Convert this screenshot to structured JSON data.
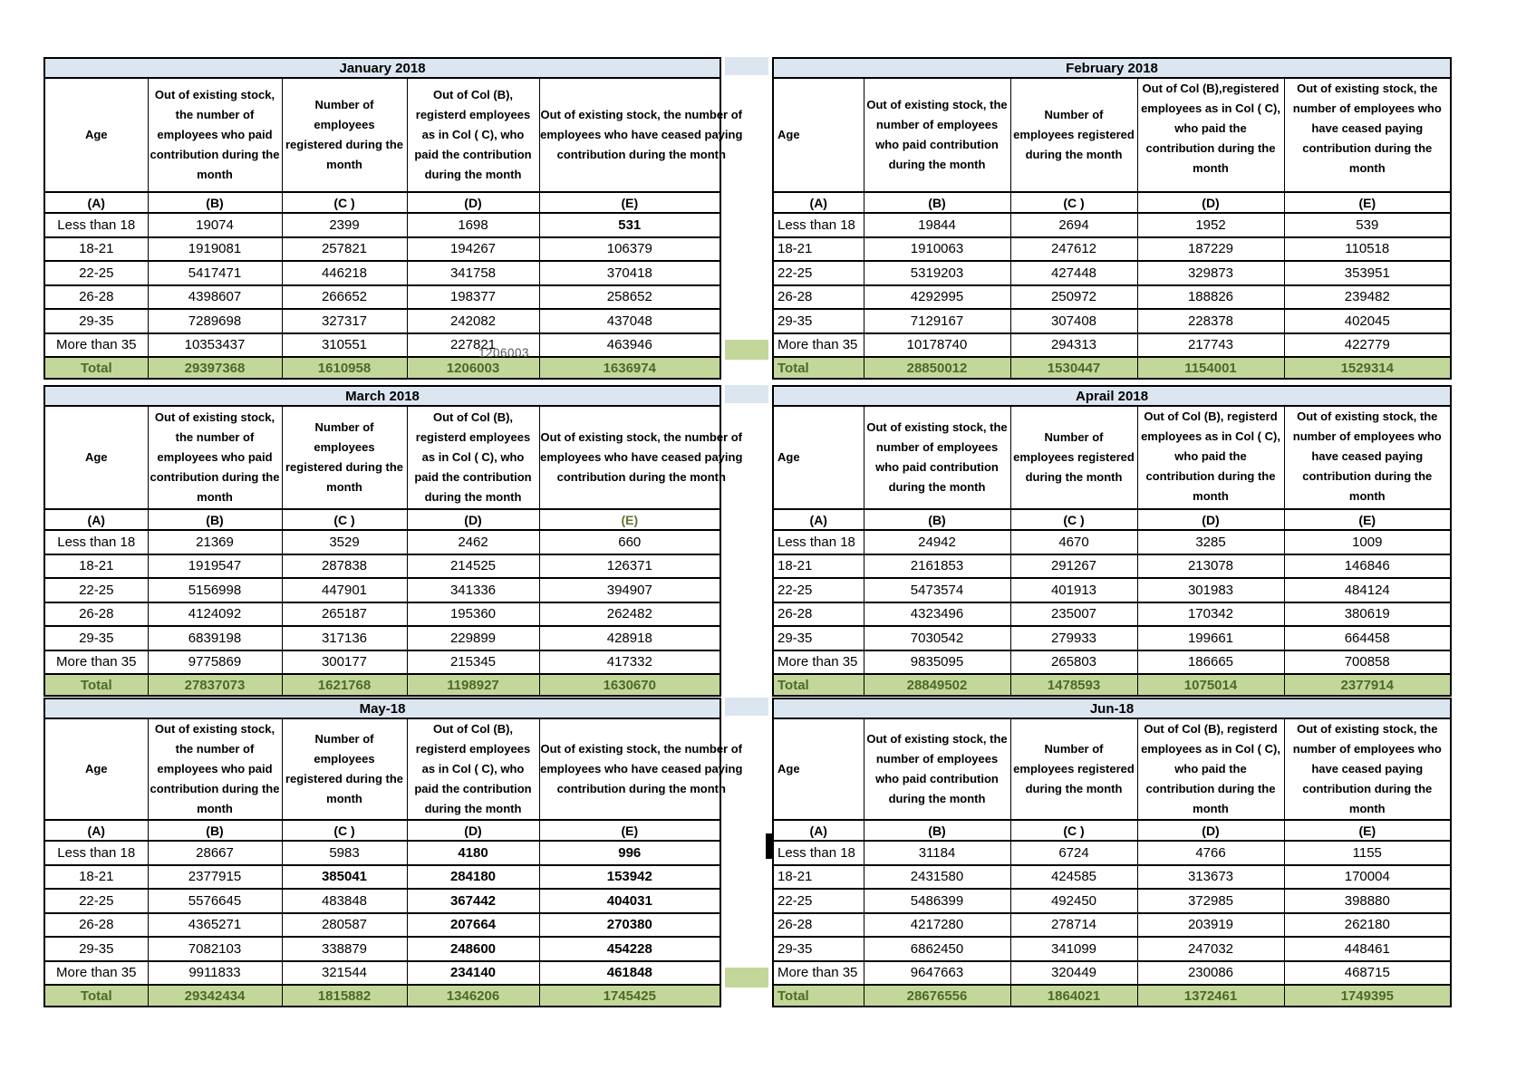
{
  "colors": {
    "title_bar_bg": "#DCE6F1",
    "total_row_bg": "#C4D79B",
    "green_value": "#5E7630",
    "green_bold": "#4C6A27",
    "stray_gray": "#595959",
    "border": "#000000"
  },
  "extras": {
    "stray_number": "1206003"
  },
  "tables": [
    {
      "id": "january",
      "title": "January 2018",
      "label_align": "center",
      "e_letter_green": false,
      "headers": {
        "a": "Age",
        "b": "Out of existing stock, the number of employees who paid contribution during the month",
        "c": "Number of employees registered during the month",
        "d": "Out of Col (B), registerd employees as in Col ( C), who paid the contribution during the month",
        "e": "Out of existing stock, the number of  employees  who have ceased paying contribution during the month"
      },
      "letters": [
        "(A)",
        "(B)",
        "(C )",
        "(D)",
        "(E)"
      ],
      "rows": [
        {
          "label": "Less than 18",
          "cells": [
            {
              "v": "19074"
            },
            {
              "v": "2399"
            },
            {
              "v": "1698"
            },
            {
              "v": "531",
              "c": "bb"
            }
          ]
        },
        {
          "label": "18-21",
          "cells": [
            {
              "v": "1919081"
            },
            {
              "v": "257821"
            },
            {
              "v": "194267"
            },
            {
              "v": "106379",
              "c": "g"
            }
          ]
        },
        {
          "label": "22-25",
          "cells": [
            {
              "v": "5417471"
            },
            {
              "v": "446218"
            },
            {
              "v": "341758"
            },
            {
              "v": "370418",
              "c": "g"
            }
          ]
        },
        {
          "label": "26-28",
          "cells": [
            {
              "v": "4398607"
            },
            {
              "v": "266652"
            },
            {
              "v": "198377"
            },
            {
              "v": "258652",
              "c": "g"
            }
          ]
        },
        {
          "label": "29-35",
          "cells": [
            {
              "v": "7289698"
            },
            {
              "v": "327317"
            },
            {
              "v": "242082"
            },
            {
              "v": "437048",
              "c": "g"
            }
          ]
        },
        {
          "label": "More than 35",
          "cells": [
            {
              "v": "10353437"
            },
            {
              "v": "310551"
            },
            {
              "v": "227821"
            },
            {
              "v": "463946",
              "c": "g"
            }
          ]
        }
      ],
      "total": {
        "label": "Total",
        "values": [
          "29397368",
          "1610958",
          "1206003",
          "1636974"
        ]
      }
    },
    {
      "id": "february",
      "title": "February 2018",
      "label_align": "left",
      "e_letter_green": false,
      "headers": {
        "a": "Age",
        "b": "Out of existing stock, the number of employees who paid contribution during the month",
        "c": "Number of employees registered during the month",
        "d": "Out of Col (B),registered employees as in Col ( C), who paid the contribution during the month",
        "e": "Out of existing stock, the number of employees  who have ceased paying contribution during the month"
      },
      "letters": [
        "(A)",
        "(B)",
        "(C )",
        "(D)",
        "(E)"
      ],
      "rows": [
        {
          "label": "Less than 18",
          "cells": [
            {
              "v": "19844"
            },
            {
              "v": "2694"
            },
            {
              "v": "1952"
            },
            {
              "v": "539"
            }
          ]
        },
        {
          "label": "18-21",
          "cells": [
            {
              "v": "1910063"
            },
            {
              "v": "247612"
            },
            {
              "v": "187229"
            },
            {
              "v": "110518",
              "c": "g"
            }
          ]
        },
        {
          "label": "22-25",
          "cells": [
            {
              "v": "5319203"
            },
            {
              "v": "427448"
            },
            {
              "v": "329873"
            },
            {
              "v": "353951",
              "c": "g"
            }
          ]
        },
        {
          "label": "26-28",
          "cells": [
            {
              "v": "4292995"
            },
            {
              "v": "250972"
            },
            {
              "v": "188826"
            },
            {
              "v": "239482",
              "c": "g"
            }
          ]
        },
        {
          "label": "29-35",
          "cells": [
            {
              "v": "7129167"
            },
            {
              "v": "307408"
            },
            {
              "v": "228378"
            },
            {
              "v": "402045",
              "c": "g"
            }
          ]
        },
        {
          "label": "More than 35",
          "cells": [
            {
              "v": "10178740"
            },
            {
              "v": "294313"
            },
            {
              "v": "217743"
            },
            {
              "v": "422779",
              "c": "g"
            }
          ]
        }
      ],
      "total": {
        "label": "Total",
        "values": [
          "28850012",
          "1530447",
          "1154001",
          "1529314"
        ]
      }
    },
    {
      "id": "march",
      "title": "March 2018",
      "label_align": "center",
      "e_letter_green": true,
      "headers": {
        "a": "Age",
        "b": "Out of existing stock, the number of employees who paid contribution during the month",
        "c": "Number of employees registered during the month",
        "d": "Out of Col (B), registerd employees as in Col ( C), who paid the contribution during the month",
        "e": "Out of existing stock, the number of  employees  who have ceased paying contribution during the month"
      },
      "letters": [
        "(A)",
        "(B)",
        "(C )",
        "(D)",
        "(E)"
      ],
      "rows": [
        {
          "label": "Less than 18",
          "cells": [
            {
              "v": "21369"
            },
            {
              "v": "3529"
            },
            {
              "v": "2462"
            },
            {
              "v": "660"
            }
          ]
        },
        {
          "label": "18-21",
          "cells": [
            {
              "v": "1919547"
            },
            {
              "v": "287838"
            },
            {
              "v": "214525"
            },
            {
              "v": "126371",
              "c": "g"
            }
          ]
        },
        {
          "label": "22-25",
          "cells": [
            {
              "v": "5156998"
            },
            {
              "v": "447901"
            },
            {
              "v": "341336"
            },
            {
              "v": "394907",
              "c": "g"
            }
          ]
        },
        {
          "label": "26-28",
          "cells": [
            {
              "v": "4124092"
            },
            {
              "v": "265187"
            },
            {
              "v": "195360"
            },
            {
              "v": "262482",
              "c": "g"
            }
          ]
        },
        {
          "label": "29-35",
          "cells": [
            {
              "v": "6839198"
            },
            {
              "v": "317136"
            },
            {
              "v": "229899"
            },
            {
              "v": "428918",
              "c": "g"
            }
          ]
        },
        {
          "label": "More than 35",
          "cells": [
            {
              "v": "9775869"
            },
            {
              "v": "300177"
            },
            {
              "v": "215345"
            },
            {
              "v": "417332",
              "c": "g"
            }
          ]
        }
      ],
      "total": {
        "label": "Total",
        "values": [
          "27837073",
          "1621768",
          "1198927",
          "1630670"
        ]
      }
    },
    {
      "id": "april",
      "title": "Aprail 2018",
      "label_align": "left",
      "e_letter_green": false,
      "headers": {
        "a": "Age",
        "b": "Out of existing stock, the number of employees who paid contribution during the month",
        "c": "Number of employees registered during the month",
        "d": "Out of Col (B), registerd employees as in Col ( C), who paid the contribution during the month",
        "e": "Out of existing stock, the number of employees  who have ceased paying contribution during the month"
      },
      "letters": [
        "(A)",
        "(B)",
        "(C )",
        "(D)",
        "(E)"
      ],
      "rows": [
        {
          "label": "Less than 18",
          "cells": [
            {
              "v": "24942"
            },
            {
              "v": "4670"
            },
            {
              "v": "3285"
            },
            {
              "v": "1009"
            }
          ]
        },
        {
          "label": "18-21",
          "cells": [
            {
              "v": "2161853"
            },
            {
              "v": "291267"
            },
            {
              "v": "213078"
            },
            {
              "v": "146846"
            }
          ]
        },
        {
          "label": "22-25",
          "cells": [
            {
              "v": "5473574"
            },
            {
              "v": "401913"
            },
            {
              "v": "301983"
            },
            {
              "v": "484124"
            }
          ]
        },
        {
          "label": "26-28",
          "cells": [
            {
              "v": "4323496"
            },
            {
              "v": "235007"
            },
            {
              "v": "170342"
            },
            {
              "v": "380619"
            }
          ]
        },
        {
          "label": "29-35",
          "cells": [
            {
              "v": "7030542"
            },
            {
              "v": "279933"
            },
            {
              "v": "199661"
            },
            {
              "v": "664458"
            }
          ]
        },
        {
          "label": "More than 35",
          "cells": [
            {
              "v": "9835095"
            },
            {
              "v": "265803"
            },
            {
              "v": "186665"
            },
            {
              "v": "700858"
            }
          ]
        }
      ],
      "total": {
        "label": "Total",
        "values": [
          "28849502",
          "1478593",
          "1075014",
          "2377914"
        ]
      }
    },
    {
      "id": "may",
      "title": "May-18",
      "label_align": "center",
      "e_letter_green": false,
      "headers": {
        "a": "Age",
        "b": "Out of existing stock, the number of employees who paid contribution during the month",
        "c": "Number of employees registered during the month",
        "d": "Out of Col (B), registerd employees as in Col ( C), who paid the contribution during the month",
        "e": "Out of existing stock, the number of  employees  who have ceased paying contribution during the month"
      },
      "letters": [
        "(A)",
        "(B)",
        "(C )",
        "(D)",
        "(E)"
      ],
      "rows": [
        {
          "label": "Less than 18",
          "cells": [
            {
              "v": "28667"
            },
            {
              "v": "5983"
            },
            {
              "v": "4180",
              "c": "bg"
            },
            {
              "v": "996",
              "c": "bg"
            }
          ]
        },
        {
          "label": "18-21",
          "cells": [
            {
              "v": "2377915"
            },
            {
              "v": "385041",
              "c": "bg"
            },
            {
              "v": "284180",
              "c": "bg"
            },
            {
              "v": "153942",
              "c": "bg"
            }
          ]
        },
        {
          "label": "22-25",
          "cells": [
            {
              "v": "5576645"
            },
            {
              "v": "483848"
            },
            {
              "v": "367442",
              "c": "bg"
            },
            {
              "v": "404031",
              "c": "bg"
            }
          ]
        },
        {
          "label": "26-28",
          "cells": [
            {
              "v": "4365271"
            },
            {
              "v": "280587"
            },
            {
              "v": "207664",
              "c": "bg"
            },
            {
              "v": "270380",
              "c": "bg"
            }
          ]
        },
        {
          "label": "29-35",
          "cells": [
            {
              "v": "7082103"
            },
            {
              "v": "338879"
            },
            {
              "v": "248600",
              "c": "bg"
            },
            {
              "v": "454228",
              "c": "bg"
            }
          ]
        },
        {
          "label": "More than 35",
          "cells": [
            {
              "v": "9911833"
            },
            {
              "v": "321544"
            },
            {
              "v": "234140",
              "c": "bg"
            },
            {
              "v": "461848",
              "c": "bg"
            }
          ]
        }
      ],
      "total": {
        "label": "Total",
        "values": [
          "29342434",
          "1815882",
          "1346206",
          "1745425"
        ]
      }
    },
    {
      "id": "june",
      "title": "Jun-18",
      "label_align": "left",
      "e_letter_green": false,
      "headers": {
        "a": "Age",
        "b": "Out of existing stock, the number of employees who paid contribution during the month",
        "c": "Number of employees registered during the month",
        "d": "Out of Col (B), registerd employees as in Col ( C), who paid the contribution during the month",
        "e": "Out of existing stock, the number of employees  who have ceased paying contribution during the month"
      },
      "letters": [
        "(A)",
        "(B)",
        "(C )",
        "(D)",
        "(E)"
      ],
      "rows": [
        {
          "label": "Less than 18",
          "cells": [
            {
              "v": "31184"
            },
            {
              "v": "6724"
            },
            {
              "v": "4766"
            },
            {
              "v": "1155"
            }
          ]
        },
        {
          "label": "18-21",
          "cells": [
            {
              "v": "2431580"
            },
            {
              "v": "424585"
            },
            {
              "v": "313673"
            },
            {
              "v": "170004"
            }
          ]
        },
        {
          "label": "22-25",
          "cells": [
            {
              "v": "5486399"
            },
            {
              "v": "492450"
            },
            {
              "v": "372985"
            },
            {
              "v": "398880"
            }
          ]
        },
        {
          "label": "26-28",
          "cells": [
            {
              "v": "4217280"
            },
            {
              "v": "278714"
            },
            {
              "v": "203919"
            },
            {
              "v": "262180"
            }
          ]
        },
        {
          "label": "29-35",
          "cells": [
            {
              "v": "6862450"
            },
            {
              "v": "341099"
            },
            {
              "v": "247032"
            },
            {
              "v": "448461"
            }
          ]
        },
        {
          "label": "More than 35",
          "cells": [
            {
              "v": "9647663"
            },
            {
              "v": "320449"
            },
            {
              "v": "230086"
            },
            {
              "v": "468715"
            }
          ]
        }
      ],
      "total": {
        "label": "Total",
        "values": [
          "28676556",
          "1864021",
          "1372461",
          "1749395"
        ]
      }
    }
  ]
}
